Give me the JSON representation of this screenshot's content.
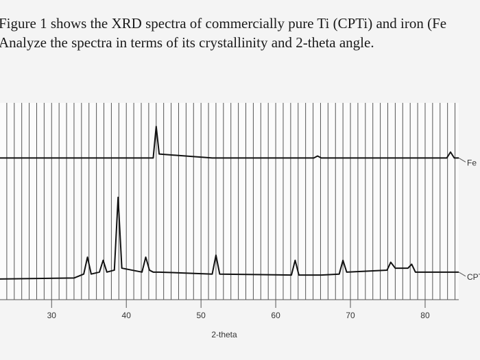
{
  "question": {
    "line1": "Figure 1 shows the XRD spectra of commercially pure Ti (CPTi) and iron (Fe",
    "line2": "Analyze the spectra in terms of its crystallinity and 2-theta angle."
  },
  "chart_data": {
    "type": "line",
    "x_label": "2-theta",
    "xlim": [
      23,
      84.5
    ],
    "xticks": [
      30,
      40,
      50,
      60,
      70,
      80
    ],
    "x_minor_ticks": [
      24,
      25,
      26,
      27,
      28,
      29,
      30,
      31,
      32,
      33,
      34,
      35,
      36,
      37,
      38,
      39,
      40,
      41,
      42,
      43,
      44,
      45,
      46,
      47,
      48,
      49,
      50,
      51,
      52,
      53,
      54,
      55,
      56,
      57,
      58,
      59,
      60,
      61,
      62,
      63,
      64,
      65,
      66,
      67,
      68,
      69,
      70,
      71,
      72,
      73,
      74,
      75,
      76,
      77,
      78,
      79,
      80,
      81,
      82,
      83,
      84
    ],
    "ylim": [
      0,
      100
    ],
    "x": [
      23,
      33,
      34.3,
      34.8,
      35.3,
      36.4,
      36.9,
      37.4,
      38.4,
      38.9,
      39.4,
      42.1,
      42.6,
      43.1,
      43.6,
      44.0,
      44.4,
      51.5,
      52.0,
      52.5,
      62.1,
      62.6,
      63.1,
      65.1,
      65.6,
      66.1,
      68.5,
      69.0,
      69.5,
      74.9,
      75.4,
      76.0,
      77.7,
      78.2,
      78.7,
      82.9,
      83.4,
      83.9,
      84.5
    ],
    "series": [
      {
        "name": "Fe",
        "color": "#111111",
        "values": [
          72,
          72,
          72,
          72,
          72,
          72,
          72,
          72,
          72,
          72,
          72,
          72,
          72,
          72,
          72,
          88,
          74,
          72,
          72,
          72,
          72,
          72,
          72,
          72,
          73,
          72,
          72,
          72,
          72,
          72,
          72,
          72,
          72,
          72,
          72,
          72,
          75,
          72,
          72
        ]
      },
      {
        "name": "CPTi",
        "color": "#111111",
        "values": [
          10.5,
          11,
          13,
          21.6,
          13,
          14,
          20,
          14,
          15,
          52,
          16,
          14,
          21.6,
          15,
          14,
          14,
          14,
          13,
          22.6,
          13,
          12.5,
          20,
          12.5,
          12.5,
          12.5,
          12.5,
          13,
          20,
          14,
          15,
          19,
          16,
          16,
          18,
          14,
          14,
          14,
          14,
          14
        ]
      }
    ]
  }
}
